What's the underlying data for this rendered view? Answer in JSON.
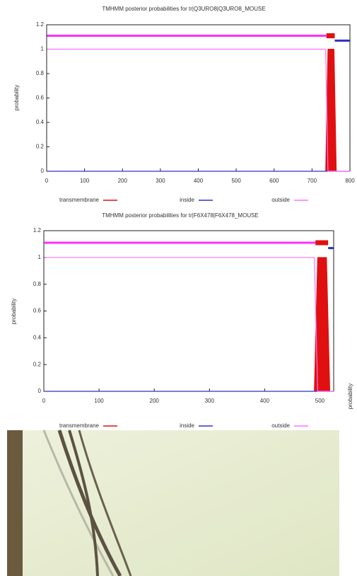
{
  "chart_data": [
    {
      "type": "line",
      "title": "TMHMM posterior probabilities for tr|Q3URO8|Q3URO8_MOUSE",
      "y_label": "probability",
      "x": [
        1,
        736,
        742,
        758,
        764,
        800
      ],
      "series": [
        {
          "name": "transmembrane",
          "color": "#e01010",
          "filled": true,
          "values": [
            0,
            0,
            1,
            1,
            0,
            0
          ]
        },
        {
          "name": "inside",
          "color": "#3030c8",
          "values": [
            0,
            0,
            0,
            0,
            0,
            0
          ]
        },
        {
          "name": "outside",
          "color": "#ff70ff",
          "values": [
            1,
            1,
            0,
            0,
            0,
            0
          ]
        }
      ],
      "topology": [
        {
          "start": 1,
          "end": 738,
          "level": 1.11,
          "color": "#ff30ff"
        },
        {
          "start": 738,
          "end": 760,
          "level": 1.11,
          "color": "#e01010"
        },
        {
          "start": 760,
          "end": 800,
          "level": 1.07,
          "color": "#3030c8"
        }
      ],
      "xlim": [
        0,
        800
      ],
      "xticks": [
        0,
        100,
        200,
        300,
        400,
        500,
        600,
        700,
        800
      ],
      "ylim": [
        0,
        1.2
      ],
      "yticks": [
        0,
        0.2,
        0.4,
        0.6,
        0.8,
        1,
        1.2
      ]
    },
    {
      "type": "line",
      "title": "TMHMM posterior probabilities for tr|F6X478|F6X478_MOUSE",
      "y_label": "probability",
      "x": [
        1,
        490,
        496,
        512,
        518,
        525
      ],
      "series": [
        {
          "name": "transmembrane",
          "color": "#e01010",
          "filled": true,
          "values": [
            0,
            0,
            1,
            1,
            0,
            0
          ]
        },
        {
          "name": "inside",
          "color": "#3030c8",
          "values": [
            0,
            0,
            0,
            0,
            0,
            0
          ]
        },
        {
          "name": "outside",
          "color": "#ff70ff",
          "values": [
            1,
            1,
            0,
            0,
            0,
            0
          ]
        }
      ],
      "topology": [
        {
          "start": 1,
          "end": 492,
          "level": 1.11,
          "color": "#ff30ff"
        },
        {
          "start": 492,
          "end": 515,
          "level": 1.11,
          "color": "#e01010"
        },
        {
          "start": 515,
          "end": 525,
          "level": 1.07,
          "color": "#3030c8"
        }
      ],
      "xlim": [
        0,
        525
      ],
      "xticks": [
        0,
        100,
        200,
        300,
        400,
        500
      ],
      "ylim": [
        0,
        1.2
      ],
      "yticks": [
        0,
        0.2,
        0.4,
        0.6,
        0.8,
        1,
        1.2
      ]
    }
  ],
  "slide": {
    "side_label": "probability"
  }
}
